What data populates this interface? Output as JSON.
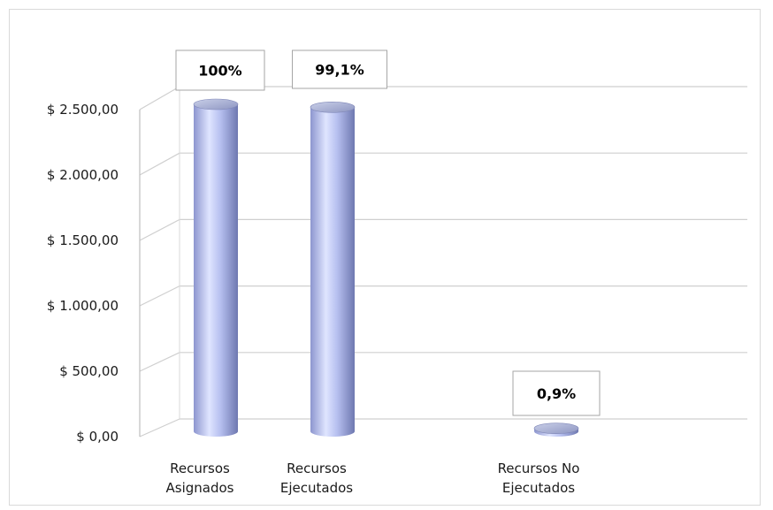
{
  "chart_data": {
    "type": "bar",
    "categories": [
      "Recursos Asignados",
      "Recursos Ejecutados",
      "Recursos No Ejecutados"
    ],
    "category_lines": [
      [
        "Recursos",
        "Asignados"
      ],
      [
        "Recursos",
        "Ejecutados"
      ],
      [
        "Recursos No",
        "Ejecutados"
      ]
    ],
    "values": [
      2500,
      2477.5,
      22.5
    ],
    "data_labels": [
      "100%",
      "99,1%",
      "0,9%"
    ],
    "yticks": [
      "$ 0,00",
      "$ 500,00",
      "$ 1.000,00",
      "$ 1.500,00",
      "$ 2.000,00",
      "$ 2.500,00"
    ],
    "ytick_values": [
      0,
      500,
      1000,
      1500,
      2000,
      2500
    ],
    "ylim": [
      0,
      2500
    ],
    "grid": true,
    "legend": "none",
    "bar_style": "3d-cylinder",
    "colors": {
      "bar_light": "#dfe5ff",
      "bar_mid": "#aab4ea",
      "bar_dark": "#6e78b0",
      "grid": "#cfcfcf"
    }
  }
}
